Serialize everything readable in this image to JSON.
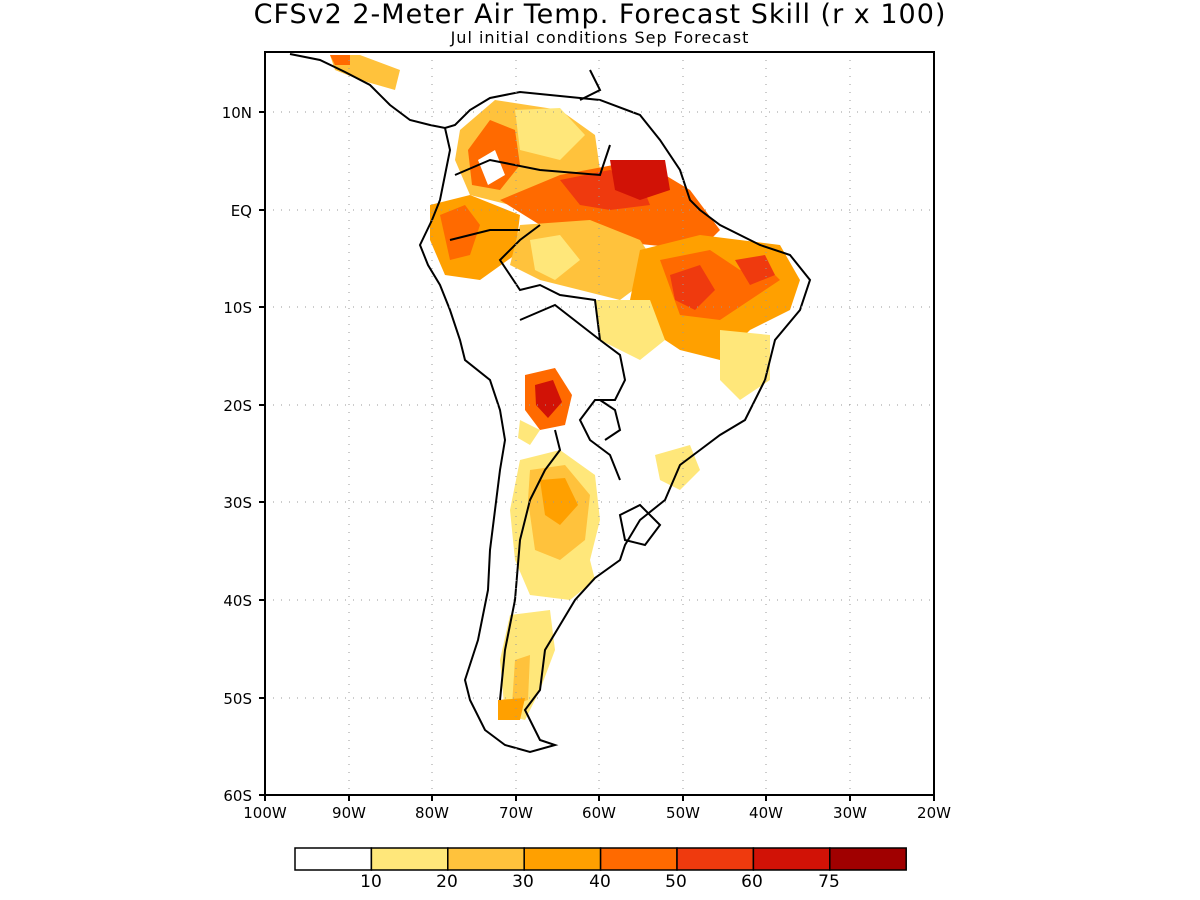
{
  "title": "CFSv2 2-Meter Air Temp. Forecast Skill (r x 100)",
  "subtitle": "Jul initial conditions  Sep Forecast",
  "lat_labels": [
    "10N",
    "EQ",
    "10S",
    "20S",
    "30S",
    "40S",
    "50S",
    "60S"
  ],
  "lon_labels": [
    "100W",
    "90W",
    "80W",
    "70W",
    "60W",
    "50W",
    "40W",
    "30W",
    "20W"
  ],
  "colorbar": {
    "colors": [
      "#ffffff",
      "#ffe77a",
      "#ffc23c",
      "#ffa000",
      "#ff6a00",
      "#ef3a0e",
      "#d11206",
      "#a00000"
    ],
    "labels": [
      "10",
      "20",
      "30",
      "40",
      "50",
      "60",
      "75"
    ]
  },
  "map_extent": {
    "lon": [
      -100,
      -20
    ],
    "lat": [
      -60,
      15
    ]
  },
  "map_grid": "dotted"
}
